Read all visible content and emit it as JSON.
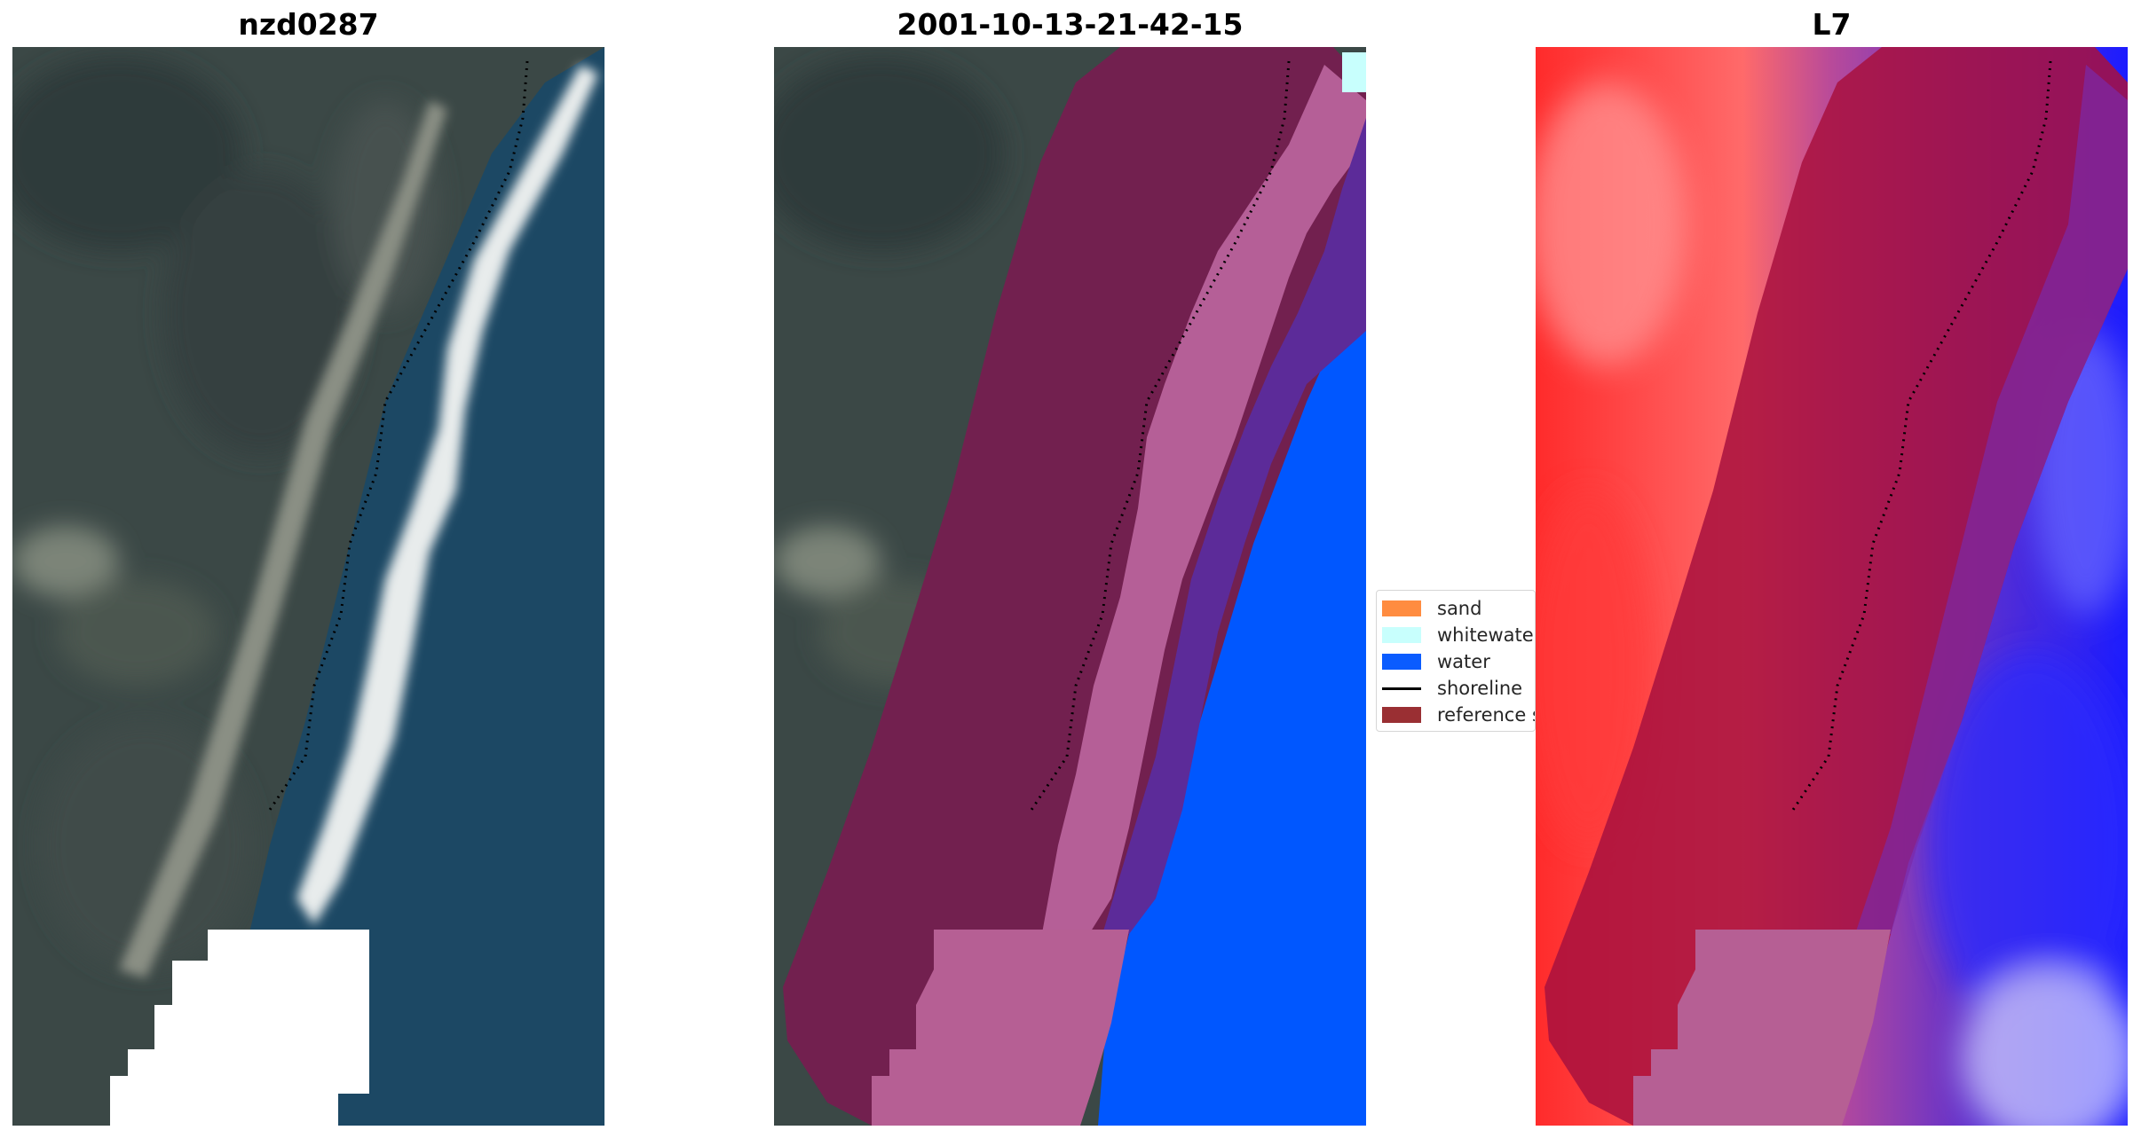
{
  "panels": [
    {
      "title": "nzd0287",
      "kind": "rgb-image"
    },
    {
      "title": "2001-10-13-21-42-15",
      "kind": "classified-image"
    },
    {
      "title": "L7",
      "kind": "probability-map"
    }
  ],
  "legend": {
    "items": [
      {
        "label": "sand",
        "color": "#ff8c40",
        "style": "patch"
      },
      {
        "label": "whitewater",
        "color": "#c8fffd",
        "style": "patch"
      },
      {
        "label": "water",
        "color": "#0a5cff",
        "style": "patch"
      },
      {
        "label": "shoreline",
        "color": "#000000",
        "style": "line"
      },
      {
        "label": "reference shoreline buffer",
        "color": "#9a2f33",
        "style": "patch"
      }
    ]
  },
  "colors": {
    "land": "#3d4a48",
    "sea": "#1c4a66",
    "whitewater_texture": "#f2f4f4",
    "nodata": "#ffffff",
    "buffer": "#7a1f4b",
    "whitewater_class": "#b46396",
    "water_class": "#0056ff",
    "probability_red": "#ff2020",
    "probability_blue": "#1a1aff"
  }
}
